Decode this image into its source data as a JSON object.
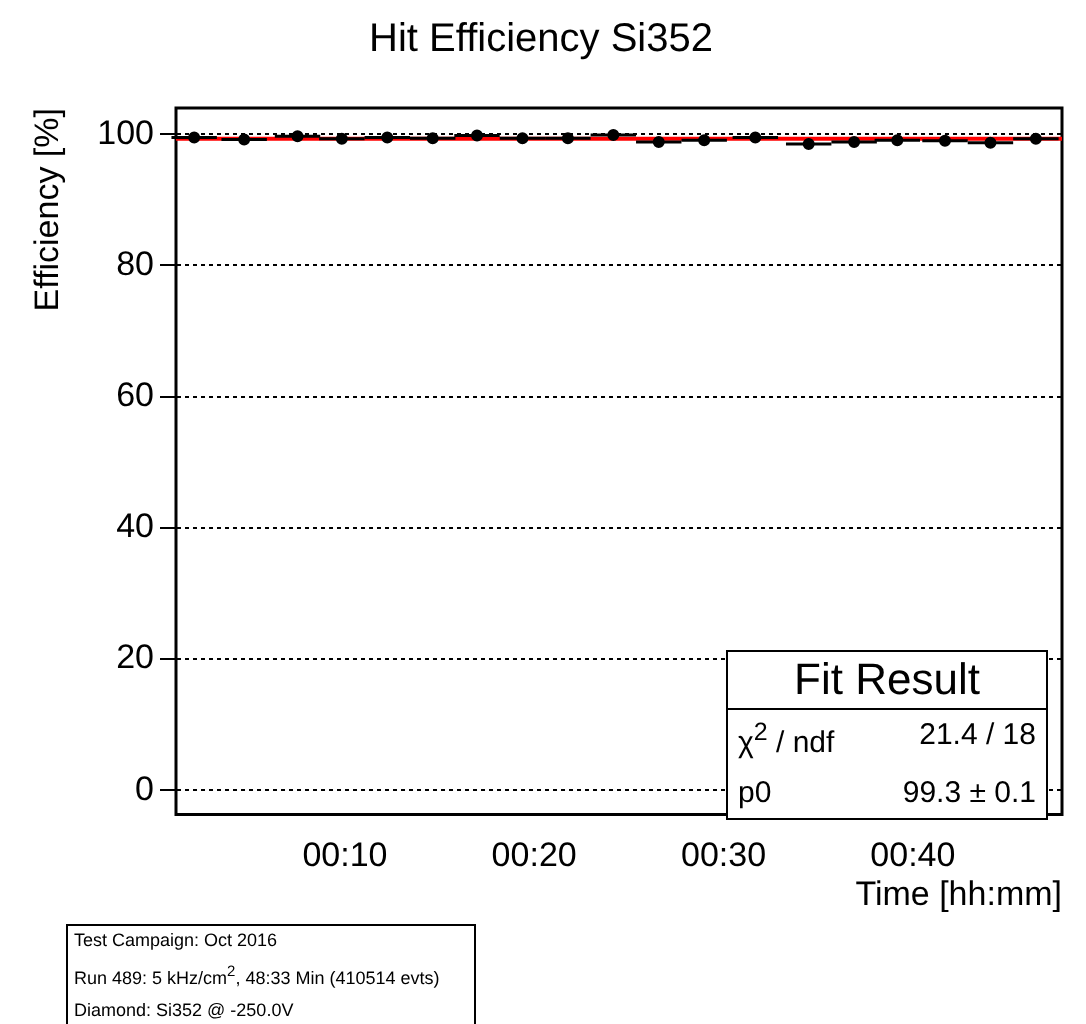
{
  "chart_data": {
    "type": "scatter",
    "title": "Hit Efficiency Si352",
    "xlabel": "Time [hh:mm]",
    "ylabel": "Efficiency [%]",
    "x": [
      0.034,
      0.078,
      0.125,
      0.164,
      0.204,
      0.244,
      0.283,
      0.323,
      0.363,
      0.403,
      0.443,
      0.483,
      0.528,
      0.575,
      0.615,
      0.653,
      0.695,
      0.735,
      0.775
    ],
    "series": [
      {
        "color": "#000000",
        "marker": "circle",
        "values": [
          99.5,
          99.2,
          99.7,
          99.3,
          99.5,
          99.4,
          99.8,
          99.4,
          99.4,
          99.9,
          98.8,
          99.1,
          99.5,
          98.5,
          98.8,
          99.1,
          99.0,
          98.7,
          99.3
        ],
        "xerrors": [
          0.02,
          0.02,
          0.02,
          0.02,
          0.02,
          0.02,
          0.02,
          0.02,
          0.02,
          0.02,
          0.02,
          0.02,
          0.02,
          0.02,
          0.02,
          0.02,
          0.02,
          0.02,
          0.02
        ]
      },
      {
        "type": "line",
        "marker": "none",
        "color": "#ff0000",
        "x": [
          0.018,
          0.798
        ],
        "values": [
          99.3,
          99.3
        ]
      }
    ],
    "xlim": [
      0.018,
      0.798
    ],
    "xticks": [
      {
        "value": 0.1667,
        "label": "00:10"
      },
      {
        "value": 0.3333,
        "label": "00:20"
      },
      {
        "value": 0.5,
        "label": "00:30"
      },
      {
        "value": 0.6667,
        "label": "00:40"
      }
    ],
    "ylim": [
      -3.7,
      104
    ],
    "yticks": [
      0,
      20,
      40,
      60,
      80,
      100
    ],
    "grid": "y",
    "legend": false,
    "annotations": [
      "Fit Result",
      "χ$^{2}$ / ndf",
      "21.4 / 18",
      "p0",
      "99.3 ± 0.1",
      "Test Campaign: Oct 2016",
      "Run 489:   5 kHz/cm$^{2}$, 48:33 Min (410514 evts)",
      "Diamond: Si352 @ -250.0V"
    ]
  }
}
